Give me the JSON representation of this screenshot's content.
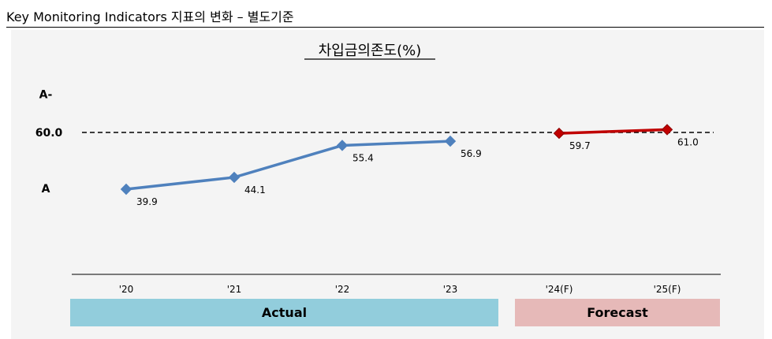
{
  "header": {
    "title": "Key Monitoring Indicators 지표의 변화 – 별도기준"
  },
  "chart_data": {
    "type": "line",
    "title": "차입금의존도(%)",
    "categories": [
      "'20",
      "'21",
      "'22",
      "'23",
      "'24(F)",
      "'25(F)"
    ],
    "series": [
      {
        "values": [
          39.9,
          44.1,
          55.4,
          56.9,
          null,
          null
        ],
        "color": "#4f81bd"
      },
      {
        "values": [
          null,
          null,
          null,
          null,
          59.7,
          61.0
        ],
        "color": "#c00000"
      }
    ],
    "data_labels": [
      "39.9",
      "44.1",
      "55.4",
      "56.9",
      "59.7",
      "61.0"
    ],
    "reference_line": {
      "value": 60.0,
      "label": "60.0",
      "style": "dashed"
    },
    "y_labels": [
      {
        "text": "A-",
        "value": 73.6
      },
      {
        "text": "A",
        "value": 40.2
      }
    ],
    "ylim": [
      0,
      80
    ],
    "bands": [
      {
        "label": "Actual",
        "from": 0,
        "to": 3,
        "color": "#92cddc"
      },
      {
        "label": "Forecast",
        "from": 4,
        "to": 5,
        "color": "#e6b9b8"
      }
    ],
    "grid": false
  }
}
